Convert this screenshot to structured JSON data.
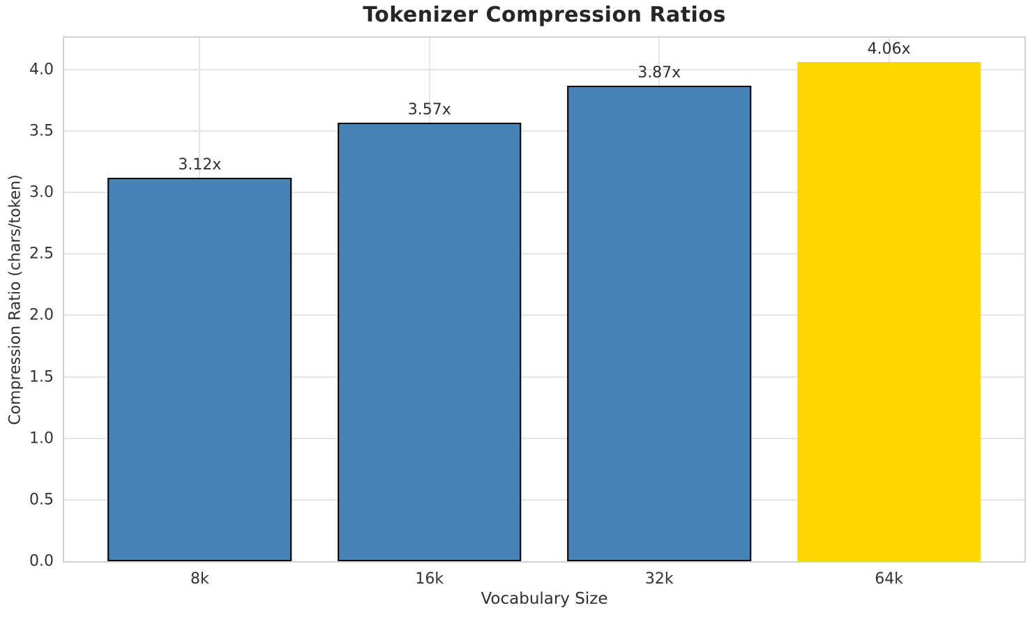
{
  "chart_data": {
    "type": "bar",
    "title": "Tokenizer Compression Ratios",
    "xlabel": "Vocabulary Size",
    "ylabel": "Compression Ratio (chars/token)",
    "categories": [
      "8k",
      "16k",
      "32k",
      "64k"
    ],
    "values": [
      3.12,
      3.57,
      3.87,
      4.06
    ],
    "bar_labels": [
      "3.12x",
      "3.57x",
      "3.87x",
      "4.06x"
    ],
    "bar_colors": [
      "#4682B4",
      "#4682B4",
      "#4682B4",
      "#FFD700"
    ],
    "bar_edge_colors": [
      "#000000",
      "#000000",
      "#000000",
      null
    ],
    "ylim": [
      0,
      4.26
    ],
    "yticks": [
      0,
      0.5,
      1,
      1.5,
      2,
      2.5,
      3,
      3.5,
      4
    ],
    "ytick_labels": [
      "0.0",
      "0.5",
      "1.0",
      "1.5",
      "2.0",
      "2.5",
      "3.0",
      "3.5",
      "4.0"
    ],
    "grid": true,
    "legend": false,
    "colors": {
      "bar_default": "#4682B4",
      "bar_highlight": "#FFD700",
      "bar_edge": "#000000",
      "grid": "#e4e4e4",
      "spine": "#d3d3d3",
      "text": "#2b2b2b"
    }
  }
}
